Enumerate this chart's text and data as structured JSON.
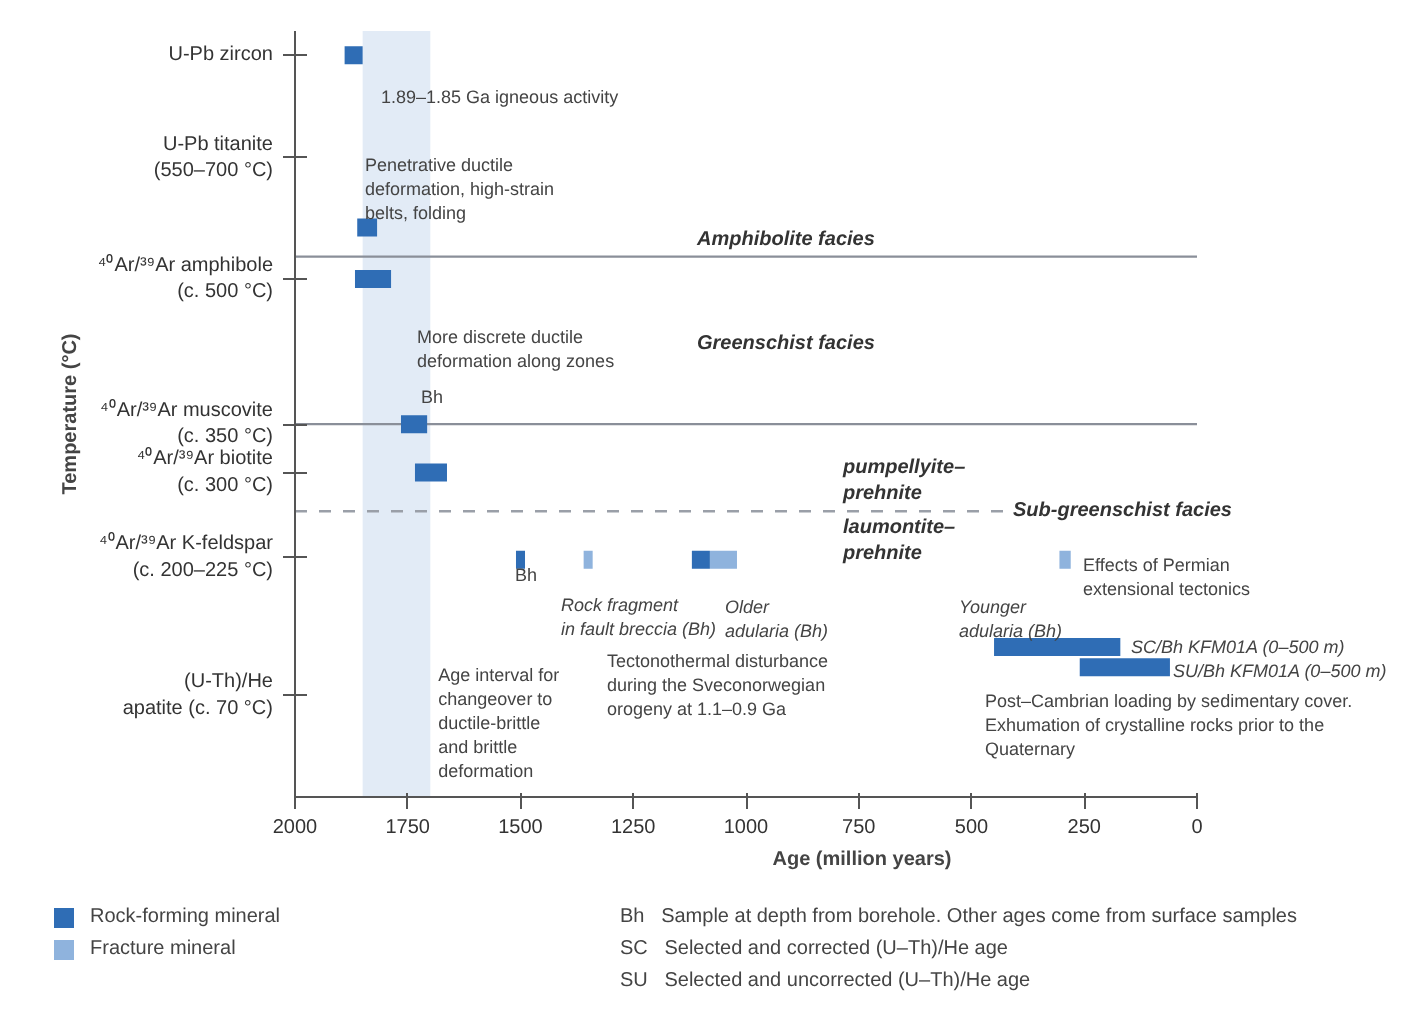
{
  "chart_data": {
    "type": "line",
    "xlabel": "Age (million years)",
    "ylabel": "Temperature (°C)",
    "xlim": [
      2000,
      0
    ],
    "xticks": [
      2000,
      1750,
      1500,
      1250,
      1000,
      750,
      500,
      250,
      0
    ],
    "ylim": [
      -35,
      756
    ],
    "yticks": [
      {
        "value": 731,
        "label": "U-Pb zircon"
      },
      {
        "value": 625,
        "label": "U-Pb titanite\n(550–700 °C)"
      },
      {
        "value": 500,
        "label": "⁴⁰Ar/³⁹Ar amphibole\n(c. 500 °C)"
      },
      {
        "value": 350,
        "label": "⁴⁰Ar/³⁹Ar muscovite\n(c. 350 °C)"
      },
      {
        "value": 300,
        "label": "⁴⁰Ar/³⁹Ar biotite\n(c. 300 °C)"
      },
      {
        "value": 212.5,
        "label": "⁴⁰Ar/³⁹Ar K-feldspar\n(c. 200–225 °C)"
      },
      {
        "value": 70,
        "label": "(U-Th)/He\napatite (c. 70 °C)"
      }
    ],
    "series": [
      {
        "name": "Rock-forming mineral",
        "color": "#2f6db5",
        "x": [
          1890,
          1850,
          null,
          1862,
          1818,
          null,
          1867,
          1787,
          null,
          1765,
          1707,
          null,
          1734,
          1663,
          null,
          1510,
          1490,
          null,
          1120,
          1080,
          null,
          450,
          170,
          null,
          260,
          60
        ],
        "values": [
          731,
          731,
          null,
          553,
          553,
          null,
          500,
          500,
          null,
          350,
          350,
          null,
          300,
          300,
          null,
          210,
          210,
          null,
          210,
          210,
          null,
          120,
          120,
          null,
          99,
          99
        ]
      },
      {
        "name": "Fracture mineral",
        "color": "#8fb3dd",
        "x": [
          1360,
          1340,
          null,
          1080,
          1020,
          null,
          305,
          280
        ],
        "values": [
          210,
          210,
          null,
          210,
          210,
          null,
          210,
          210
        ]
      }
    ],
    "ref_lines": [
      {
        "axis": "y",
        "value": 523,
        "label": "Amphibolite facies",
        "color": "#8a8f99",
        "line_style": "solid"
      },
      {
        "axis": "y",
        "value": 350,
        "color": "#8a8f99",
        "line_style": "solid"
      },
      {
        "axis": "y",
        "value": 260,
        "label": "Sub-greenschist facies",
        "color": "#9a9fa8",
        "line_style": "dashed"
      }
    ],
    "bands": [
      {
        "axis": "x",
        "from": 1850,
        "to": 1700,
        "label": "Age interval for\nchangeover to\nductile-brittle\nand brittle\ndeformation",
        "color": "#dbe6f4"
      }
    ],
    "annotations": [
      "1.89–1.85 Ga igneous activity",
      "Penetrative ductile\ndeformation, high-strain\nbelts, folding",
      "More discrete ductile\ndeformation along zones",
      "Bh",
      "Bh",
      "Rock fragment\nin fault breccia (Bh)",
      "Older\nadularia (Bh)",
      "Tectonothermal disturbance\nduring the Sveconorwegian\norogeny at 1.1–0.9 Ga",
      "pumpellyite–\nprehnite",
      "laumontite–\nprehnite",
      "Effects of Permian\nextensional tectonics",
      "Younger\nadularia (Bh)",
      "SC/Bh KFM01A (0–500 m)",
      "SU/Bh KFM01A (0–500 m)",
      "Post–Cambrian loading by sedimentary cover.\nExhumation of crystalline rocks prior to the\nQuaternary",
      "Greenschist facies",
      "Bh   Sample at depth from borehole. Other ages come from surface samples",
      "SC   Selected and corrected (U–Th)/He age",
      "SU   Selected and uncorrected (U–Th)/He age"
    ],
    "legend": "bottom left",
    "line_style": "solid",
    "grid": false
  }
}
